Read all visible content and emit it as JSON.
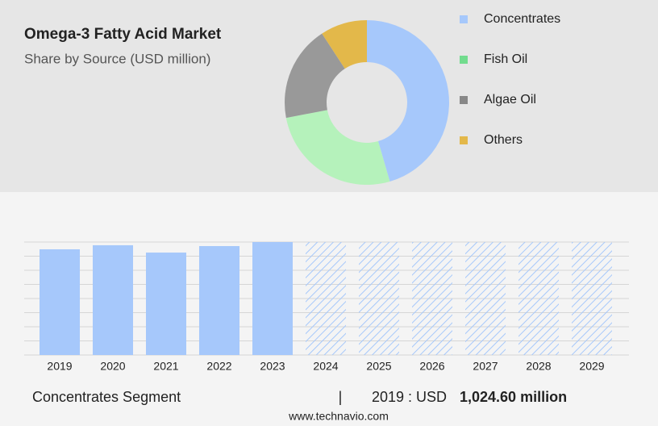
{
  "chart_data": [
    {
      "type": "pie",
      "title": "Omega-3 Fatty Acid Market",
      "subtitle": "Share by Source (USD million)",
      "categories": [
        "Concentrates",
        "Fish Oil",
        "Algae Oil",
        "Others"
      ],
      "values": [
        45.5,
        26.5,
        18.8,
        9.2
      ],
      "colors": [
        "#a6c8fb",
        "#b5f2bb",
        "#999999",
        "#e3b84a"
      ],
      "legend_colors": [
        "#a6c8fb",
        "#72dc8e",
        "#888888",
        "#e3b84a"
      ],
      "donut": true
    },
    {
      "type": "bar",
      "categories": [
        "2019",
        "2020",
        "2021",
        "2022",
        "2023",
        "2024",
        "2025",
        "2026",
        "2027",
        "2028",
        "2029"
      ],
      "values": [
        1024.6,
        1064,
        993,
        1056,
        1095,
        null,
        null,
        null,
        null,
        null,
        null
      ],
      "color": "#a6c8fb",
      "forecast_color": "#a6c8fb",
      "ylim": [
        0,
        1095
      ]
    }
  ],
  "footer": {
    "segment": "Concentrates Segment",
    "separator": "|",
    "year_label": "2019 : USD",
    "value_label": "1,024.60 million",
    "source": "www.technavio.com"
  }
}
